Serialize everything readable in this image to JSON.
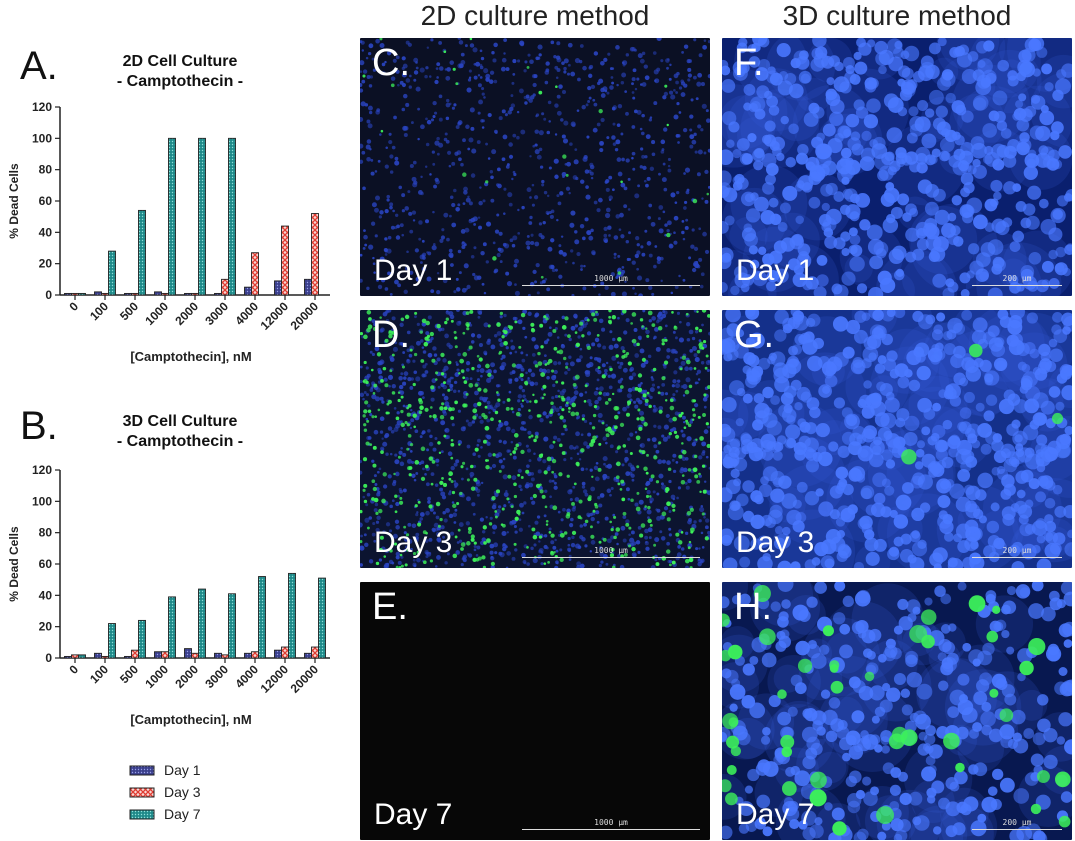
{
  "columns": {
    "left": "2D culture method",
    "right": "3D culture method"
  },
  "chart_data": [
    {
      "type": "bar",
      "panel": "A.",
      "title": "2D Cell Culture",
      "subtitle": "- Camptothecin -",
      "xlabel": "[Camptothecin], nM",
      "ylabel": "% Dead Cells",
      "ylim": [
        0,
        120
      ],
      "yticks": [
        0,
        20,
        40,
        60,
        80,
        100,
        120
      ],
      "categories": [
        "0",
        "100",
        "500",
        "1000",
        "2000",
        "3000",
        "4000",
        "12000",
        "20000"
      ],
      "series": [
        {
          "name": "Day 1",
          "values": [
            1,
            2,
            1,
            2,
            1,
            1,
            5,
            9,
            10
          ]
        },
        {
          "name": "Day 3",
          "values": [
            1,
            1,
            1,
            1,
            1,
            10,
            27,
            44,
            52
          ]
        },
        {
          "name": "Day 7",
          "values": [
            1,
            28,
            54,
            100,
            100,
            100,
            0,
            0,
            0
          ]
        }
      ]
    },
    {
      "type": "bar",
      "panel": "B.",
      "title": "3D Cell Culture",
      "subtitle": "- Camptothecin -",
      "xlabel": "[Camptothecin], nM",
      "ylabel": "% Dead Cells",
      "ylim": [
        0,
        120
      ],
      "yticks": [
        0,
        20,
        40,
        60,
        80,
        100,
        120
      ],
      "categories": [
        "0",
        "100",
        "500",
        "1000",
        "2000",
        "3000",
        "4000",
        "12000",
        "20000"
      ],
      "series": [
        {
          "name": "Day 1",
          "values": [
            1,
            3,
            1,
            4,
            6,
            3,
            3,
            5,
            3
          ]
        },
        {
          "name": "Day 3",
          "values": [
            2,
            1,
            5,
            4,
            3,
            2,
            4,
            7,
            7
          ]
        },
        {
          "name": "Day 7",
          "values": [
            2,
            22,
            24,
            39,
            44,
            41,
            52,
            54,
            51
          ]
        }
      ]
    }
  ],
  "legend": [
    {
      "label": "Day 1",
      "color": "#3a3f8c",
      "pattern": "dots"
    },
    {
      "label": "Day 3",
      "color": "#e03c31",
      "pattern": "cross"
    },
    {
      "label": "Day 7",
      "color": "#1f8a8a",
      "pattern": "dots"
    }
  ],
  "micrographs": {
    "C": {
      "letter": "C.",
      "day": "Day 1",
      "scale": "1000 μm",
      "green": 25
    },
    "D": {
      "letter": "D.",
      "day": "Day 3",
      "scale": "1000 μm",
      "green": 650
    },
    "E": {
      "letter": "E.",
      "day": "Day 7",
      "scale": "1000 μm",
      "green": 0
    },
    "F": {
      "letter": "F.",
      "day": "Day 1",
      "scale": "200 μm",
      "green": 0
    },
    "G": {
      "letter": "G.",
      "day": "Day 3",
      "scale": "200 μm",
      "green": 3
    },
    "H": {
      "letter": "H.",
      "day": "Day 7",
      "scale": "200 μm",
      "green": 45
    }
  },
  "colors": {
    "day1": "#3a3f8c",
    "day3": "#e03c31",
    "day7": "#1f8a8a",
    "nucleus_blue": "#2d4fd0",
    "dead_green": "#3cf05a"
  }
}
